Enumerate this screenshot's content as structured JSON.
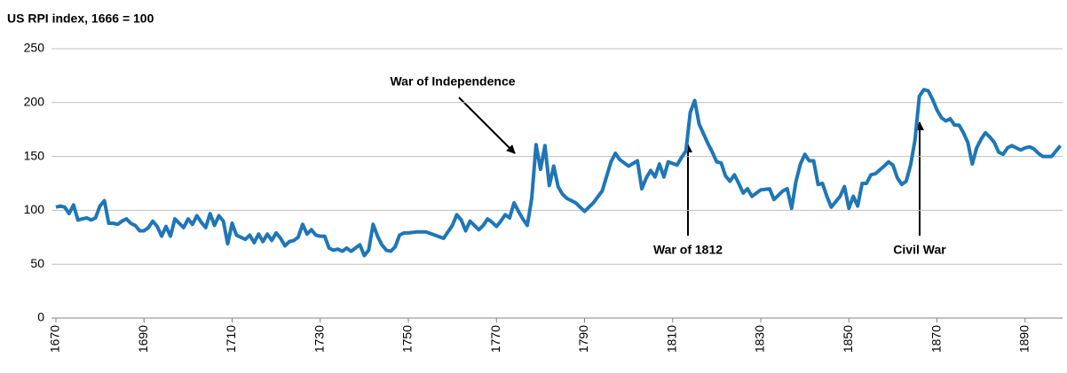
{
  "chart_data": {
    "type": "line",
    "title": "US RPI index, 1666 = 100",
    "x": [
      1670,
      1671,
      1672,
      1673,
      1674,
      1675,
      1676,
      1677,
      1678,
      1679,
      1680,
      1681,
      1682,
      1683,
      1684,
      1685,
      1686,
      1687,
      1688,
      1689,
      1690,
      1691,
      1692,
      1693,
      1694,
      1695,
      1696,
      1697,
      1698,
      1699,
      1700,
      1701,
      1702,
      1703,
      1704,
      1705,
      1706,
      1707,
      1708,
      1709,
      1710,
      1711,
      1712,
      1713,
      1714,
      1715,
      1716,
      1717,
      1718,
      1719,
      1720,
      1721,
      1722,
      1723,
      1724,
      1725,
      1726,
      1727,
      1728,
      1729,
      1730,
      1731,
      1732,
      1733,
      1734,
      1735,
      1736,
      1737,
      1738,
      1739,
      1740,
      1741,
      1742,
      1743,
      1744,
      1745,
      1746,
      1747,
      1748,
      1749,
      1750,
      1752,
      1754,
      1756,
      1758,
      1760,
      1761,
      1762,
      1763,
      1764,
      1765,
      1766,
      1767,
      1768,
      1769,
      1770,
      1771,
      1772,
      1773,
      1774,
      1775,
      1776,
      1777,
      1778,
      1779,
      1780,
      1781,
      1782,
      1783,
      1784,
      1785,
      1786,
      1788,
      1790,
      1792,
      1794,
      1796,
      1797,
      1798,
      1800,
      1802,
      1803,
      1804,
      1805,
      1806,
      1807,
      1808,
      1809,
      1811,
      1812,
      1813,
      1814,
      1815,
      1816,
      1818,
      1819,
      1820,
      1821,
      1822,
      1823,
      1824,
      1825,
      1826,
      1827,
      1828,
      1830,
      1832,
      1833,
      1835,
      1836,
      1837,
      1838,
      1839,
      1840,
      1841,
      1842,
      1843,
      1844,
      1845,
      1846,
      1848,
      1849,
      1850,
      1851,
      1852,
      1853,
      1854,
      1855,
      1856,
      1858,
      1859,
      1860,
      1861,
      1862,
      1863,
      1864,
      1865,
      1866,
      1867,
      1868,
      1869,
      1870,
      1871,
      1872,
      1873,
      1874,
      1875,
      1876,
      1877,
      1878,
      1879,
      1880,
      1881,
      1882,
      1883,
      1884,
      1885,
      1886,
      1887,
      1888,
      1889,
      1890,
      1891,
      1892,
      1893,
      1894,
      1895,
      1896,
      1897,
      1898
    ],
    "series": [
      {
        "color": "#1f76b7",
        "values": [
          103,
          104,
          103,
          97,
          105,
          91,
          92,
          93,
          91,
          93,
          104,
          109,
          88,
          88,
          87,
          90,
          92,
          88,
          86,
          81,
          81,
          84,
          90,
          85,
          76,
          85,
          76,
          92,
          88,
          84,
          92,
          87,
          95,
          89,
          84,
          97,
          86,
          95,
          90,
          69,
          88,
          77,
          75,
          73,
          77,
          70,
          78,
          71,
          78,
          72,
          79,
          74,
          67,
          71,
          72,
          75,
          87,
          78,
          82,
          77,
          76,
          76,
          65,
          63,
          64,
          62,
          65,
          62,
          65,
          68,
          58,
          63,
          87,
          76,
          68,
          63,
          62,
          66,
          77,
          79,
          79,
          80,
          80,
          77,
          74,
          86,
          96,
          91,
          81,
          90,
          86,
          82,
          86,
          92,
          89,
          85,
          90,
          96,
          93,
          107,
          99,
          92,
          86,
          111,
          161,
          138,
          160,
          123,
          141,
          122,
          115,
          111,
          107,
          99,
          107,
          118,
          145,
          153,
          147,
          141,
          146,
          120,
          130,
          137,
          131,
          143,
          131,
          145,
          142,
          149,
          155,
          191,
          202,
          180,
          162,
          154,
          145,
          144,
          132,
          127,
          133,
          125,
          116,
          120,
          113,
          119,
          120,
          110,
          118,
          120,
          102,
          127,
          143,
          152,
          146,
          146,
          124,
          125,
          113,
          103,
          113,
          122,
          102,
          113,
          104,
          125,
          125,
          133,
          134,
          141,
          145,
          142,
          130,
          124,
          127,
          142,
          165,
          206,
          212,
          211,
          203,
          193,
          186,
          183,
          185,
          179,
          179,
          172,
          163,
          143,
          158,
          166,
          172,
          168,
          163,
          154,
          152,
          158,
          160,
          158,
          156,
          158,
          159,
          157,
          153,
          150,
          150,
          150,
          155,
          160
        ]
      }
    ],
    "xlim": [
      1669,
      1898.5
    ],
    "xticks": [
      1670,
      1690,
      1710,
      1730,
      1750,
      1770,
      1790,
      1810,
      1830,
      1850,
      1870,
      1890
    ],
    "ylim": [
      0,
      250
    ],
    "yticks": [
      0,
      50,
      100,
      150,
      200,
      250
    ],
    "grid": true,
    "annotations": [
      {
        "text": "War of Independence"
      },
      {
        "text": "War of 1812"
      },
      {
        "text": "Civil War"
      }
    ]
  }
}
